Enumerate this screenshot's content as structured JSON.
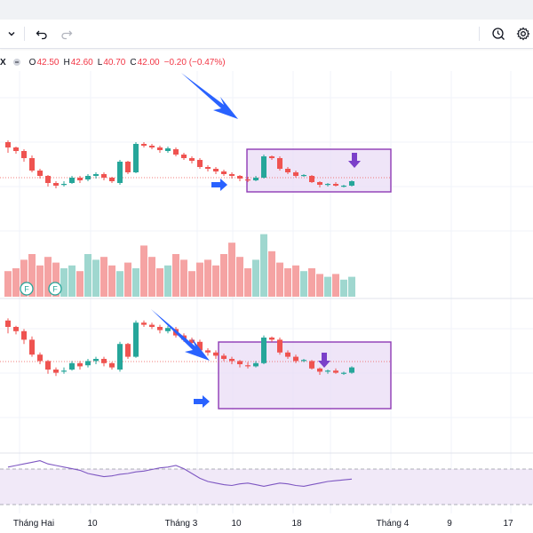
{
  "legend": {
    "symbol": "X",
    "open_key": "O",
    "open": "42.50",
    "high_key": "H",
    "high": "42.60",
    "low_key": "L",
    "low": "40.70",
    "close_key": "C",
    "close": "42.00",
    "change": "−0.20 (−0.47%)"
  },
  "toolbar": {
    "menu_icon": "chevron-down-icon",
    "undo_icon": "undo-icon",
    "redo_icon": "redo-icon",
    "camera_icon": "snapshot-icon",
    "settings_icon": "gear-icon"
  },
  "colors": {
    "up": "#26a69a",
    "down": "#ef5350",
    "volume_up": "#9fd7cf",
    "volume_down": "#f5a3a3",
    "highlight_fill": "#eadcf5",
    "highlight_border": "#8e3ab5",
    "annotation_arrow": "#2962ff",
    "marker_arrow": "#7b3fc9",
    "rsi_line": "#7e57c2",
    "rsi_band": "#f1e9f8"
  },
  "chart_data": {
    "type": "candlestick",
    "x_axis_labels": [
      "Tháng Hai",
      "10",
      "Tháng 3",
      "10",
      "18",
      "Tháng 4",
      "9",
      "17"
    ],
    "events": [
      "F",
      "F"
    ],
    "top_candles": [
      {
        "o": 196,
        "h": 198,
        "l": 184,
        "c": 190
      },
      {
        "o": 190,
        "h": 191,
        "l": 183,
        "c": 186
      },
      {
        "o": 186,
        "h": 188,
        "l": 174,
        "c": 178
      },
      {
        "o": 178,
        "h": 181,
        "l": 162,
        "c": 164
      },
      {
        "o": 164,
        "h": 166,
        "l": 155,
        "c": 158
      },
      {
        "o": 158,
        "h": 159,
        "l": 146,
        "c": 150
      },
      {
        "o": 150,
        "h": 152,
        "l": 144,
        "c": 147
      },
      {
        "o": 148,
        "h": 152,
        "l": 146,
        "c": 149
      },
      {
        "o": 150,
        "h": 158,
        "l": 149,
        "c": 156
      },
      {
        "o": 156,
        "h": 158,
        "l": 150,
        "c": 153
      },
      {
        "o": 154,
        "h": 160,
        "l": 152,
        "c": 158
      },
      {
        "o": 158,
        "h": 162,
        "l": 155,
        "c": 160
      },
      {
        "o": 160,
        "h": 162,
        "l": 153,
        "c": 156
      },
      {
        "o": 156,
        "h": 157,
        "l": 150,
        "c": 152
      },
      {
        "o": 150,
        "h": 176,
        "l": 148,
        "c": 174
      },
      {
        "o": 174,
        "h": 175,
        "l": 160,
        "c": 162
      },
      {
        "o": 162,
        "h": 196,
        "l": 161,
        "c": 194
      },
      {
        "o": 194,
        "h": 196,
        "l": 190,
        "c": 192
      },
      {
        "o": 192,
        "h": 194,
        "l": 188,
        "c": 190
      },
      {
        "o": 190,
        "h": 192,
        "l": 184,
        "c": 187
      },
      {
        "o": 186,
        "h": 191,
        "l": 184,
        "c": 189
      },
      {
        "o": 188,
        "h": 190,
        "l": 180,
        "c": 182
      },
      {
        "o": 182,
        "h": 184,
        "l": 176,
        "c": 178
      },
      {
        "o": 178,
        "h": 180,
        "l": 172,
        "c": 175
      },
      {
        "o": 176,
        "h": 178,
        "l": 166,
        "c": 168
      },
      {
        "o": 168,
        "h": 170,
        "l": 163,
        "c": 166
      },
      {
        "o": 166,
        "h": 168,
        "l": 160,
        "c": 163
      },
      {
        "o": 163,
        "h": 165,
        "l": 158,
        "c": 160
      },
      {
        "o": 160,
        "h": 162,
        "l": 155,
        "c": 158
      },
      {
        "o": 158,
        "h": 159,
        "l": 152,
        "c": 155
      },
      {
        "o": 154,
        "h": 157,
        "l": 151,
        "c": 153
      },
      {
        "o": 153,
        "h": 158,
        "l": 152,
        "c": 156
      },
      {
        "o": 156,
        "h": 182,
        "l": 155,
        "c": 180
      },
      {
        "o": 180,
        "h": 181,
        "l": 176,
        "c": 178
      },
      {
        "o": 178,
        "h": 180,
        "l": 164,
        "c": 166
      },
      {
        "o": 166,
        "h": 168,
        "l": 160,
        "c": 162
      },
      {
        "o": 162,
        "h": 164,
        "l": 156,
        "c": 158
      },
      {
        "o": 158,
        "h": 160,
        "l": 157,
        "c": 159
      },
      {
        "o": 158,
        "h": 159,
        "l": 150,
        "c": 151
      },
      {
        "o": 151,
        "h": 152,
        "l": 145,
        "c": 148
      },
      {
        "o": 148,
        "h": 150,
        "l": 146,
        "c": 149
      },
      {
        "o": 149,
        "h": 151,
        "l": 146,
        "c": 147
      },
      {
        "o": 146,
        "h": 148,
        "l": 145,
        "c": 147
      },
      {
        "o": 147,
        "h": 153,
        "l": 146,
        "c": 152
      }
    ],
    "volume": [
      18,
      20,
      26,
      30,
      22,
      28,
      24,
      20,
      22,
      18,
      30,
      26,
      28,
      22,
      18,
      24,
      20,
      36,
      28,
      20,
      22,
      30,
      26,
      18,
      24,
      26,
      22,
      30,
      38,
      28,
      20,
      26,
      44,
      32,
      24,
      20,
      22,
      18,
      20,
      16,
      14,
      16,
      12,
      14
    ],
    "rsi": [
      58,
      60,
      62,
      64,
      66,
      62,
      60,
      58,
      56,
      54,
      50,
      48,
      46,
      47,
      49,
      50,
      52,
      53,
      55,
      57,
      58,
      60,
      56,
      50,
      44,
      40,
      38,
      36,
      35,
      37,
      38,
      36,
      34,
      36,
      38,
      37,
      35,
      34,
      36,
      38,
      40,
      41,
      42,
      43
    ]
  }
}
